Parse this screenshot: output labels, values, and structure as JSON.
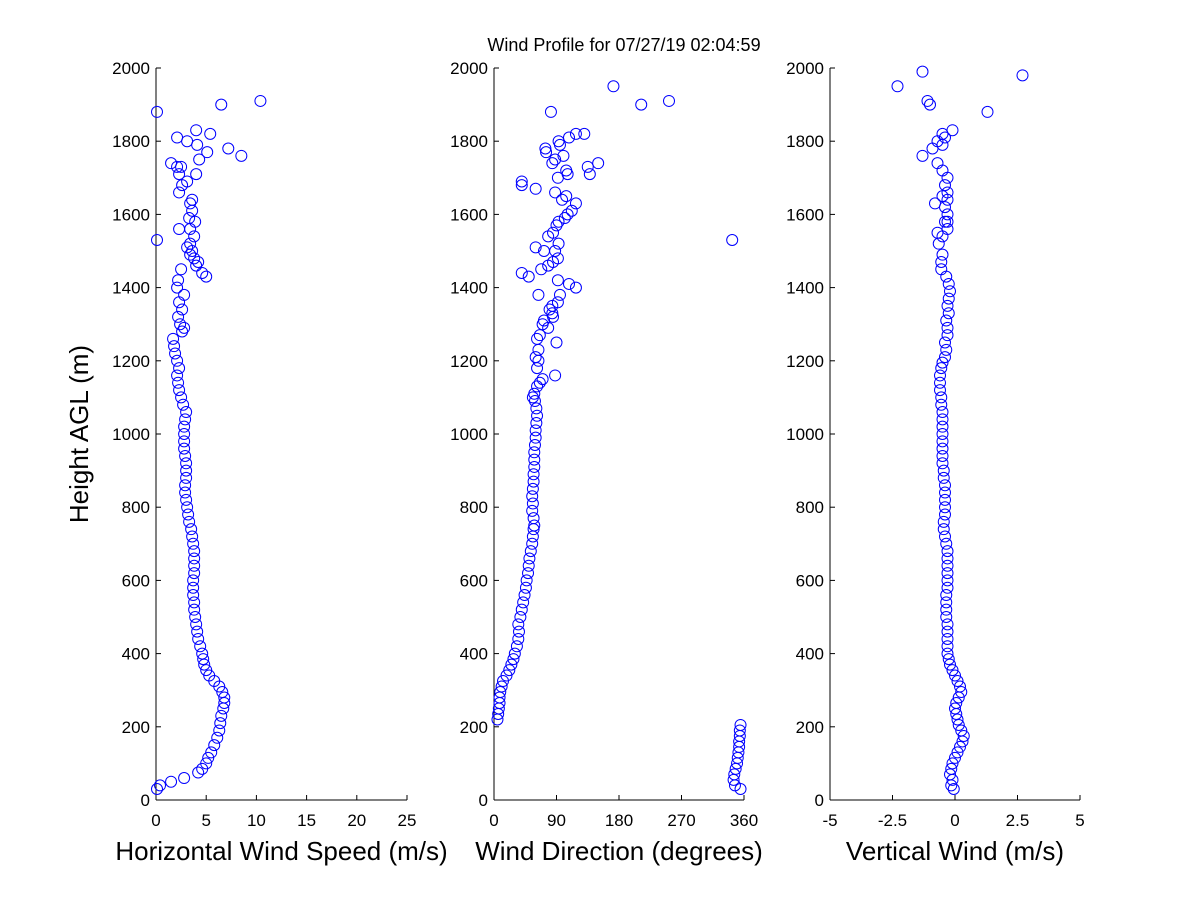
{
  "title": "Wind Profile for  07/27/19 02:04:59",
  "colors": {
    "marker": "#0000ff",
    "axes": "#000000",
    "background": "#ffffff"
  },
  "chart_data": [
    {
      "type": "scatter",
      "xlabel": "Horizontal Wind Speed (m/s)",
      "ylabel": "Height AGL (m)",
      "xlim": [
        0,
        25
      ],
      "ylim": [
        0,
        2000
      ],
      "xticks": [
        "0",
        "5",
        "10",
        "15",
        "20",
        "25"
      ],
      "yticks": [
        "0",
        "200",
        "400",
        "600",
        "800",
        "1000",
        "1200",
        "1400",
        "1600",
        "1800",
        "2000"
      ],
      "grid": false,
      "marker": "open-circle",
      "points": [
        [
          0.1,
          30
        ],
        [
          0.4,
          40
        ],
        [
          1.5,
          50
        ],
        [
          2.8,
          60
        ],
        [
          4.2,
          75
        ],
        [
          4.6,
          85
        ],
        [
          5.0,
          100
        ],
        [
          5.2,
          115
        ],
        [
          5.5,
          130
        ],
        [
          5.8,
          150
        ],
        [
          6.1,
          170
        ],
        [
          6.3,
          190
        ],
        [
          6.4,
          210
        ],
        [
          6.5,
          230
        ],
        [
          6.7,
          250
        ],
        [
          6.8,
          265
        ],
        [
          6.8,
          280
        ],
        [
          6.6,
          295
        ],
        [
          6.3,
          310
        ],
        [
          5.8,
          325
        ],
        [
          5.3,
          340
        ],
        [
          5.0,
          355
        ],
        [
          4.8,
          370
        ],
        [
          4.7,
          385
        ],
        [
          4.6,
          400
        ],
        [
          4.4,
          420
        ],
        [
          4.2,
          440
        ],
        [
          4.1,
          460
        ],
        [
          4.0,
          480
        ],
        [
          3.9,
          500
        ],
        [
          3.8,
          520
        ],
        [
          3.8,
          540
        ],
        [
          3.7,
          560
        ],
        [
          3.7,
          580
        ],
        [
          3.7,
          600
        ],
        [
          3.8,
          620
        ],
        [
          3.8,
          640
        ],
        [
          3.8,
          660
        ],
        [
          3.8,
          680
        ],
        [
          3.7,
          700
        ],
        [
          3.6,
          720
        ],
        [
          3.5,
          740
        ],
        [
          3.3,
          760
        ],
        [
          3.2,
          780
        ],
        [
          3.1,
          800
        ],
        [
          3.0,
          820
        ],
        [
          2.9,
          840
        ],
        [
          2.9,
          860
        ],
        [
          3.0,
          880
        ],
        [
          3.0,
          900
        ],
        [
          3.0,
          920
        ],
        [
          2.9,
          940
        ],
        [
          2.8,
          960
        ],
        [
          2.8,
          980
        ],
        [
          2.8,
          1000
        ],
        [
          2.8,
          1020
        ],
        [
          2.9,
          1040
        ],
        [
          3.0,
          1060
        ],
        [
          2.7,
          1080
        ],
        [
          2.5,
          1100
        ],
        [
          2.3,
          1120
        ],
        [
          2.2,
          1140
        ],
        [
          2.1,
          1160
        ],
        [
          2.3,
          1180
        ],
        [
          2.1,
          1200
        ],
        [
          1.9,
          1220
        ],
        [
          1.8,
          1240
        ],
        [
          1.7,
          1260
        ],
        [
          2.6,
          1280
        ],
        [
          2.8,
          1290
        ],
        [
          2.4,
          1300
        ],
        [
          2.2,
          1320
        ],
        [
          2.6,
          1340
        ],
        [
          2.3,
          1360
        ],
        [
          2.8,
          1380
        ],
        [
          2.1,
          1400
        ],
        [
          2.2,
          1420
        ],
        [
          2.5,
          1450
        ],
        [
          5.0,
          1430
        ],
        [
          4.6,
          1440
        ],
        [
          4.2,
          1470
        ],
        [
          3.8,
          1480
        ],
        [
          4.0,
          1460
        ],
        [
          3.4,
          1490
        ],
        [
          3.6,
          1500
        ],
        [
          3.1,
          1510
        ],
        [
          3.4,
          1520
        ],
        [
          3.8,
          1540
        ],
        [
          2.3,
          1560
        ],
        [
          0.1,
          1530
        ],
        [
          3.4,
          1560
        ],
        [
          3.9,
          1580
        ],
        [
          3.3,
          1590
        ],
        [
          3.6,
          1610
        ],
        [
          3.4,
          1630
        ],
        [
          3.6,
          1640
        ],
        [
          2.3,
          1660
        ],
        [
          2.6,
          1680
        ],
        [
          3.1,
          1690
        ],
        [
          2.3,
          1710
        ],
        [
          4.0,
          1710
        ],
        [
          2.5,
          1730
        ],
        [
          2.1,
          1730
        ],
        [
          1.5,
          1740
        ],
        [
          4.3,
          1750
        ],
        [
          8.5,
          1760
        ],
        [
          5.1,
          1770
        ],
        [
          7.2,
          1780
        ],
        [
          4.1,
          1790
        ],
        [
          3.1,
          1800
        ],
        [
          2.1,
          1810
        ],
        [
          5.4,
          1820
        ],
        [
          4.0,
          1830
        ],
        [
          0.1,
          1880
        ],
        [
          6.5,
          1900
        ],
        [
          10.4,
          1910
        ]
      ]
    },
    {
      "type": "scatter",
      "xlabel": "Wind Direction (degrees)",
      "ylabel": "",
      "xlim": [
        0,
        360
      ],
      "ylim": [
        0,
        2000
      ],
      "xticks": [
        "0",
        "90",
        "180",
        "270",
        "360"
      ],
      "yticks": [
        "0",
        "200",
        "400",
        "600",
        "800",
        "1000",
        "1200",
        "1400",
        "1600",
        "1800",
        "2000"
      ],
      "grid": false,
      "marker": "open-circle",
      "points": [
        [
          355,
          30
        ],
        [
          347,
          40
        ],
        [
          345,
          55
        ],
        [
          346,
          70
        ],
        [
          348,
          85
        ],
        [
          350,
          100
        ],
        [
          351,
          115
        ],
        [
          352,
          130
        ],
        [
          353,
          145
        ],
        [
          353,
          160
        ],
        [
          354,
          175
        ],
        [
          354,
          190
        ],
        [
          355,
          205
        ],
        [
          5,
          220
        ],
        [
          6,
          235
        ],
        [
          7,
          250
        ],
        [
          8,
          265
        ],
        [
          8,
          280
        ],
        [
          9,
          295
        ],
        [
          11,
          310
        ],
        [
          13,
          325
        ],
        [
          18,
          340
        ],
        [
          22,
          355
        ],
        [
          25,
          370
        ],
        [
          28,
          385
        ],
        [
          30,
          400
        ],
        [
          33,
          420
        ],
        [
          35,
          440
        ],
        [
          36,
          460
        ],
        [
          35,
          480
        ],
        [
          38,
          500
        ],
        [
          40,
          520
        ],
        [
          42,
          540
        ],
        [
          44,
          560
        ],
        [
          46,
          580
        ],
        [
          47,
          600
        ],
        [
          49,
          620
        ],
        [
          50,
          640
        ],
        [
          51,
          660
        ],
        [
          53,
          680
        ],
        [
          55,
          700
        ],
        [
          56,
          720
        ],
        [
          57,
          740
        ],
        [
          58,
          750
        ],
        [
          57,
          770
        ],
        [
          55,
          790
        ],
        [
          56,
          810
        ],
        [
          55,
          830
        ],
        [
          56,
          850
        ],
        [
          57,
          870
        ],
        [
          57,
          890
        ],
        [
          58,
          910
        ],
        [
          58,
          930
        ],
        [
          58,
          950
        ],
        [
          59,
          970
        ],
        [
          60,
          990
        ],
        [
          60,
          1010
        ],
        [
          61,
          1030
        ],
        [
          62,
          1050
        ],
        [
          61,
          1070
        ],
        [
          59,
          1090
        ],
        [
          56,
          1100
        ],
        [
          58,
          1110
        ],
        [
          62,
          1130
        ],
        [
          66,
          1140
        ],
        [
          70,
          1150
        ],
        [
          88,
          1160
        ],
        [
          62,
          1180
        ],
        [
          64,
          1200
        ],
        [
          60,
          1210
        ],
        [
          64,
          1230
        ],
        [
          90,
          1250
        ],
        [
          62,
          1260
        ],
        [
          66,
          1270
        ],
        [
          78,
          1290
        ],
        [
          70,
          1300
        ],
        [
          72,
          1310
        ],
        [
          85,
          1320
        ],
        [
          84,
          1330
        ],
        [
          80,
          1340
        ],
        [
          84,
          1350
        ],
        [
          92,
          1360
        ],
        [
          64,
          1380
        ],
        [
          118,
          1400
        ],
        [
          95,
          1380
        ],
        [
          108,
          1410
        ],
        [
          92,
          1420
        ],
        [
          40,
          1440
        ],
        [
          50,
          1430
        ],
        [
          68,
          1450
        ],
        [
          78,
          1460
        ],
        [
          85,
          1470
        ],
        [
          92,
          1480
        ],
        [
          60,
          1510
        ],
        [
          72,
          1500
        ],
        [
          88,
          1500
        ],
        [
          78,
          1540
        ],
        [
          93,
          1520
        ],
        [
          85,
          1550
        ],
        [
          90,
          1570
        ],
        [
          93,
          1580
        ],
        [
          102,
          1590
        ],
        [
          106,
          1600
        ],
        [
          112,
          1610
        ],
        [
          118,
          1630
        ],
        [
          104,
          1650
        ],
        [
          98,
          1640
        ],
        [
          88,
          1660
        ],
        [
          60,
          1670
        ],
        [
          40,
          1680
        ],
        [
          40,
          1690
        ],
        [
          92,
          1700
        ],
        [
          106,
          1710
        ],
        [
          104,
          1720
        ],
        [
          138,
          1710
        ],
        [
          135,
          1730
        ],
        [
          150,
          1740
        ],
        [
          84,
          1740
        ],
        [
          75,
          1770
        ],
        [
          100,
          1760
        ],
        [
          88,
          1750
        ],
        [
          74,
          1780
        ],
        [
          95,
          1790
        ],
        [
          93,
          1800
        ],
        [
          108,
          1810
        ],
        [
          118,
          1820
        ],
        [
          130,
          1820
        ],
        [
          82,
          1880
        ],
        [
          172,
          1950
        ],
        [
          212,
          1900
        ],
        [
          252,
          1910
        ],
        [
          343,
          1530
        ]
      ]
    },
    {
      "type": "scatter",
      "xlabel": "Vertical Wind (m/s)",
      "ylabel": "",
      "xlim": [
        -5,
        5
      ],
      "ylim": [
        0,
        2000
      ],
      "xticks": [
        "-5",
        "-2.5",
        "0",
        "2.5",
        "5"
      ],
      "yticks": [
        "0",
        "200",
        "400",
        "600",
        "800",
        "1000",
        "1200",
        "1400",
        "1600",
        "1800",
        "2000"
      ],
      "grid": false,
      "marker": "open-circle",
      "points": [
        [
          -0.05,
          30
        ],
        [
          -0.15,
          40
        ],
        [
          -0.1,
          55
        ],
        [
          -0.2,
          70
        ],
        [
          -0.15,
          85
        ],
        [
          -0.1,
          100
        ],
        [
          0,
          115
        ],
        [
          0.1,
          130
        ],
        [
          0.2,
          145
        ],
        [
          0.3,
          160
        ],
        [
          0.35,
          175
        ],
        [
          0.25,
          190
        ],
        [
          0.15,
          205
        ],
        [
          0.1,
          220
        ],
        [
          0.05,
          235
        ],
        [
          0.0,
          250
        ],
        [
          0.05,
          265
        ],
        [
          0.15,
          280
        ],
        [
          0.25,
          295
        ],
        [
          0.2,
          310
        ],
        [
          0.1,
          325
        ],
        [
          0.0,
          340
        ],
        [
          -0.1,
          355
        ],
        [
          -0.2,
          370
        ],
        [
          -0.25,
          385
        ],
        [
          -0.3,
          400
        ],
        [
          -0.3,
          420
        ],
        [
          -0.3,
          440
        ],
        [
          -0.3,
          460
        ],
        [
          -0.3,
          480
        ],
        [
          -0.35,
          500
        ],
        [
          -0.35,
          520
        ],
        [
          -0.35,
          540
        ],
        [
          -0.35,
          560
        ],
        [
          -0.3,
          580
        ],
        [
          -0.3,
          600
        ],
        [
          -0.3,
          620
        ],
        [
          -0.3,
          640
        ],
        [
          -0.3,
          660
        ],
        [
          -0.3,
          680
        ],
        [
          -0.35,
          700
        ],
        [
          -0.4,
          720
        ],
        [
          -0.45,
          740
        ],
        [
          -0.45,
          760
        ],
        [
          -0.4,
          780
        ],
        [
          -0.4,
          800
        ],
        [
          -0.4,
          820
        ],
        [
          -0.4,
          840
        ],
        [
          -0.4,
          860
        ],
        [
          -0.45,
          880
        ],
        [
          -0.45,
          900
        ],
        [
          -0.5,
          920
        ],
        [
          -0.5,
          940
        ],
        [
          -0.5,
          960
        ],
        [
          -0.5,
          980
        ],
        [
          -0.5,
          1000
        ],
        [
          -0.5,
          1020
        ],
        [
          -0.5,
          1040
        ],
        [
          -0.5,
          1060
        ],
        [
          -0.55,
          1080
        ],
        [
          -0.55,
          1100
        ],
        [
          -0.6,
          1120
        ],
        [
          -0.6,
          1140
        ],
        [
          -0.6,
          1160
        ],
        [
          -0.55,
          1180
        ],
        [
          -0.5,
          1195
        ],
        [
          -0.4,
          1210
        ],
        [
          -0.35,
          1230
        ],
        [
          -0.4,
          1250
        ],
        [
          -0.3,
          1270
        ],
        [
          -0.3,
          1290
        ],
        [
          -0.35,
          1310
        ],
        [
          -0.25,
          1330
        ],
        [
          -0.3,
          1350
        ],
        [
          -0.25,
          1370
        ],
        [
          -0.2,
          1390
        ],
        [
          -0.25,
          1410
        ],
        [
          -0.35,
          1430
        ],
        [
          -0.55,
          1450
        ],
        [
          -0.55,
          1470
        ],
        [
          -0.5,
          1490
        ],
        [
          -0.65,
          1520
        ],
        [
          -0.5,
          1540
        ],
        [
          -0.7,
          1550
        ],
        [
          -0.3,
          1560
        ],
        [
          -0.4,
          1580
        ],
        [
          -0.3,
          1600
        ],
        [
          -0.4,
          1620
        ],
        [
          -0.8,
          1630
        ],
        [
          -0.3,
          1640
        ],
        [
          -0.5,
          1650
        ],
        [
          -0.3,
          1660
        ],
        [
          -0.4,
          1680
        ],
        [
          -0.3,
          1700
        ],
        [
          -0.5,
          1720
        ],
        [
          -0.7,
          1740
        ],
        [
          -1.3,
          1760
        ],
        [
          -0.9,
          1780
        ],
        [
          -0.5,
          1790
        ],
        [
          -0.7,
          1800
        ],
        [
          -0.4,
          1810
        ],
        [
          -0.1,
          1830
        ],
        [
          1.3,
          1880
        ],
        [
          -1.0,
          1900
        ],
        [
          -1.1,
          1910
        ],
        [
          -2.3,
          1950
        ],
        [
          -1.3,
          1990
        ],
        [
          2.7,
          1980
        ],
        [
          -0.3,
          1580
        ],
        [
          -0.5,
          1820
        ]
      ]
    }
  ]
}
